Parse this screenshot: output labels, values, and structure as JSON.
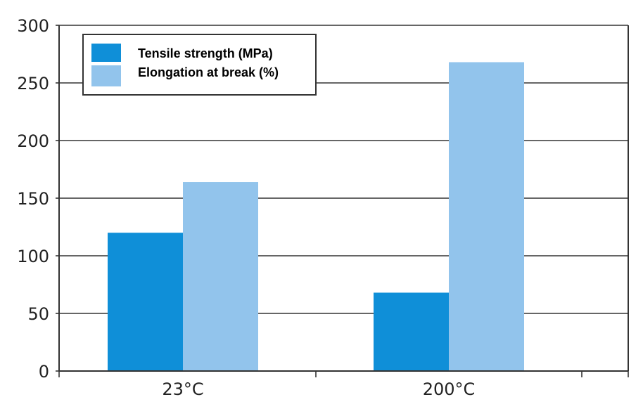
{
  "chart_data": {
    "type": "bar",
    "title": "",
    "xlabel": "",
    "ylabel": "",
    "categories": [
      "23°C",
      "200°C"
    ],
    "series": [
      {
        "name": "Tensile strength (MPa)",
        "values": [
          120,
          68
        ],
        "color": "#0f8fd8"
      },
      {
        "name": "Elongation at break (%)",
        "values": [
          164,
          268
        ],
        "color": "#92c4ec"
      }
    ],
    "ylim": [
      0,
      300
    ],
    "yticks": [
      0,
      50,
      100,
      150,
      200,
      250,
      300
    ],
    "ytick_labels": [
      "0",
      "50",
      "100",
      "150",
      "200",
      "250",
      "300"
    ],
    "grid": true,
    "legend_position": "top-left"
  }
}
